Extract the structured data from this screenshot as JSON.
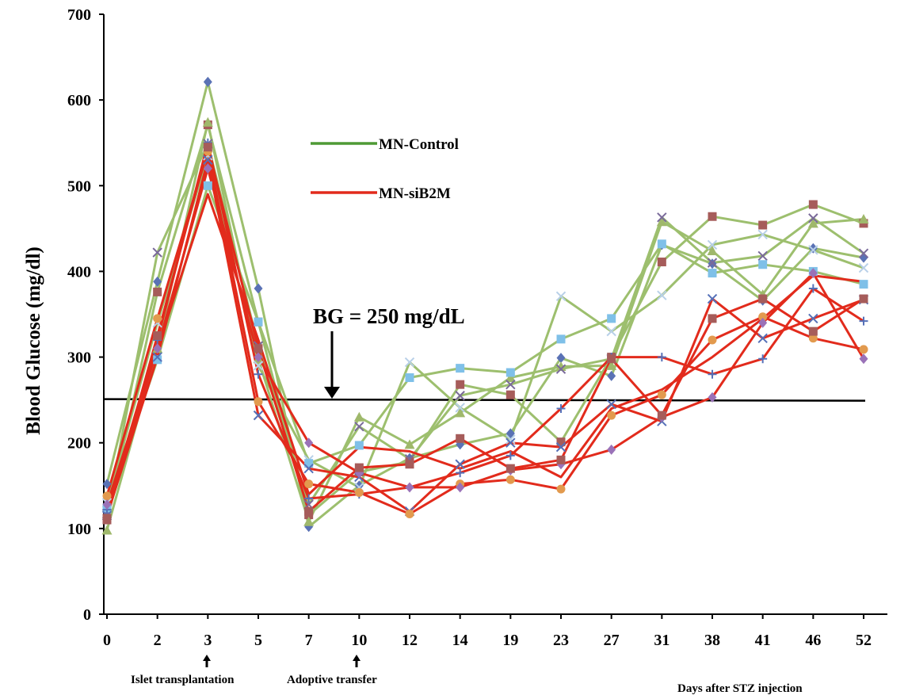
{
  "chart_data": {
    "type": "line",
    "title": "",
    "ylabel": "Blood Glucose (mg/dl)",
    "xlabel": "Days after STZ injection",
    "categories": [
      "0",
      "2",
      "3",
      "5",
      "7",
      "10",
      "12",
      "14",
      "19",
      "23",
      "27",
      "31",
      "38",
      "41",
      "46",
      "52"
    ],
    "ylim": [
      0,
      700
    ],
    "yticks": [
      0,
      100,
      200,
      300,
      400,
      500,
      600,
      700
    ],
    "grid": false,
    "legend": {
      "placement": "top-center",
      "entries": [
        {
          "label": "MN-Control",
          "color": "#3a8f2a"
        },
        {
          "label": "MN-siB2M",
          "color": "#e22b1c"
        }
      ]
    },
    "threshold": {
      "value": 250,
      "label": "BG = 250 mg/dL"
    },
    "annotations": [
      {
        "text": "Islet transplantation",
        "at": "3"
      },
      {
        "text": "Adoptive transfer",
        "at": "10"
      }
    ],
    "series": [
      {
        "group": "control",
        "color": "#9dbf6e",
        "marker": "diamond",
        "marker_color": "#5a72b5",
        "values": [
          152,
          388,
          621,
          380,
          102,
          150,
          182,
          198,
          211,
          299,
          278,
          431,
          409,
          366,
          427,
          416
        ]
      },
      {
        "group": "control",
        "color": "#9dbf6e",
        "marker": "square",
        "marker_color": "#a65c5a",
        "values": [
          110,
          376,
          571,
          341,
          116,
          166,
          178,
          268,
          256,
          201,
          300,
          411,
          464,
          454,
          478,
          456
        ]
      },
      {
        "group": "control",
        "color": "#9dbf6e",
        "marker": "triangle",
        "marker_color": "#9fb86b",
        "values": [
          98,
          310,
          574,
          298,
          108,
          230,
          198,
          235,
          276,
          289,
          290,
          458,
          424,
          373,
          456,
          461
        ]
      },
      {
        "group": "control",
        "color": "#9dbf6e",
        "marker": "x",
        "marker_color": "#7a6a9a",
        "values": [
          117,
          422,
          549,
          313,
          128,
          219,
          181,
          255,
          268,
          286,
          298,
          463,
          410,
          418,
          462,
          421
        ]
      },
      {
        "group": "control",
        "color": "#9dbf6e",
        "marker": "xlight",
        "marker_color": "#b8d0e8",
        "values": [
          130,
          340,
          535,
          290,
          180,
          148,
          294,
          241,
          204,
          371,
          330,
          372,
          431,
          443,
          425,
          404
        ]
      },
      {
        "group": "control",
        "color": "#9dbf6e",
        "marker": "square",
        "marker_color": "#7fc0e8",
        "values": [
          124,
          297,
          500,
          341,
          176,
          197,
          276,
          287,
          282,
          321,
          345,
          432,
          398,
          408,
          400,
          385
        ]
      },
      {
        "group": "siB2M",
        "color": "#e22b1c",
        "marker": "x",
        "marker_color": "#5570b8",
        "values": [
          115,
          300,
          530,
          232,
          170,
          160,
          120,
          175,
          200,
          195,
          245,
          225,
          368,
          322,
          345,
          367
        ]
      },
      {
        "group": "siB2M",
        "color": "#e22b1c",
        "marker": "plus",
        "marker_color": "#5570b8",
        "values": [
          122,
          320,
          550,
          280,
          135,
          140,
          148,
          165,
          185,
          240,
          300,
          300,
          280,
          298,
          380,
          342
        ]
      },
      {
        "group": "siB2M",
        "color": "#e22b1c",
        "marker": "circle",
        "marker_color": "#e29a4e",
        "values": [
          138,
          345,
          540,
          248,
          152,
          142,
          117,
          152,
          157,
          146,
          232,
          256,
          320,
          347,
          322,
          309
        ]
      },
      {
        "group": "siB2M",
        "color": "#e22b1c",
        "marker": "diamond",
        "marker_color": "#9a72b8",
        "values": [
          128,
          310,
          520,
          300,
          200,
          165,
          148,
          148,
          168,
          175,
          192,
          230,
          253,
          340,
          398,
          298
        ]
      },
      {
        "group": "siB2M",
        "color": "#e22b1c",
        "marker": "square",
        "marker_color": "#a65c5a",
        "values": [
          112,
          325,
          545,
          310,
          120,
          171,
          175,
          205,
          170,
          180,
          298,
          232,
          345,
          368,
          330,
          368
        ]
      },
      {
        "group": "siB2M",
        "color": "#e22b1c",
        "marker": "none",
        "marker_color": "#e22b1c",
        "values": [
          120,
          310,
          490,
          320,
          140,
          195,
          190,
          170,
          190,
          160,
          240,
          262,
          300,
          345,
          395,
          388
        ]
      }
    ]
  }
}
